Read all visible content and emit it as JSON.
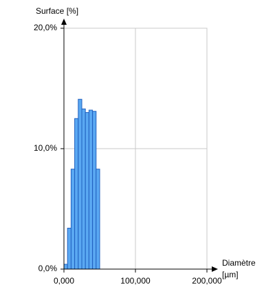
{
  "chart_data": {
    "type": "histogram",
    "ylabel": "Surface [%]",
    "xlabel": [
      "Diamètre",
      "[µm]"
    ],
    "bins": [
      0,
      5,
      10,
      15,
      20,
      25,
      30,
      35,
      40,
      45,
      50
    ],
    "values": [
      0.4,
      3.4,
      8.3,
      12.5,
      14.1,
      13.3,
      13.0,
      13.2,
      13.1,
      8.3
    ],
    "color": "#5aa8f2",
    "edge_color": "#1f5fbf",
    "xlim": [
      0,
      200
    ],
    "ylim": [
      0,
      20
    ],
    "xticks": [
      {
        "value": 0,
        "label": "0,000"
      },
      {
        "value": 100,
        "label": "100,000"
      },
      {
        "value": 200,
        "label": "200,000"
      }
    ],
    "yticks": [
      {
        "value": 0,
        "label": "0,0%"
      },
      {
        "value": 10,
        "label": "10,0%"
      },
      {
        "value": 20,
        "label": "20,0%"
      }
    ],
    "grid": true
  }
}
